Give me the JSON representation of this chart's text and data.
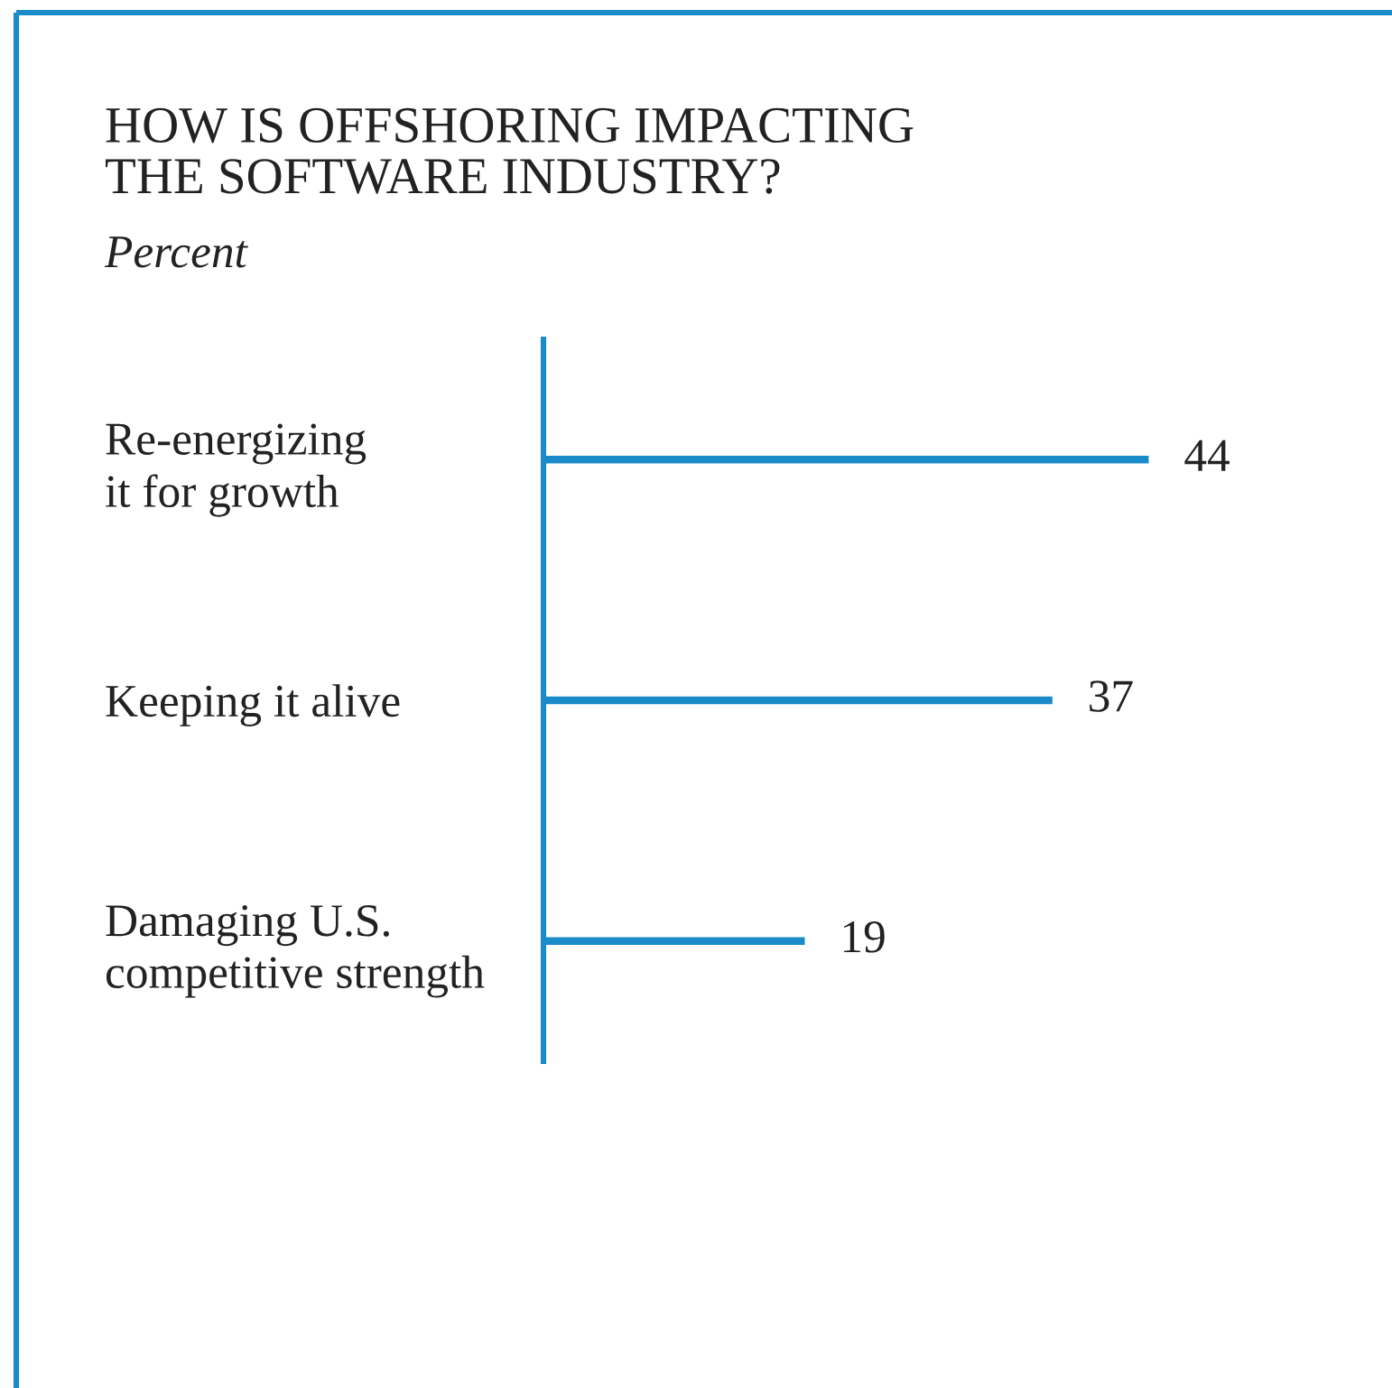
{
  "chart_data": {
    "type": "bar",
    "orientation": "horizontal",
    "title": "HOW IS OFFSHORING IMPACTING\nTHE SOFTWARE INDUSTRY?",
    "subtitle": "Percent",
    "categories": [
      "Re-energizing\nit for growth",
      "Keeping it alive",
      "Damaging U.S.\ncompetitive strength"
    ],
    "values": [
      44,
      37,
      19
    ],
    "color": "#1a8ac8",
    "data_labels": true,
    "tick_labels": "y"
  }
}
